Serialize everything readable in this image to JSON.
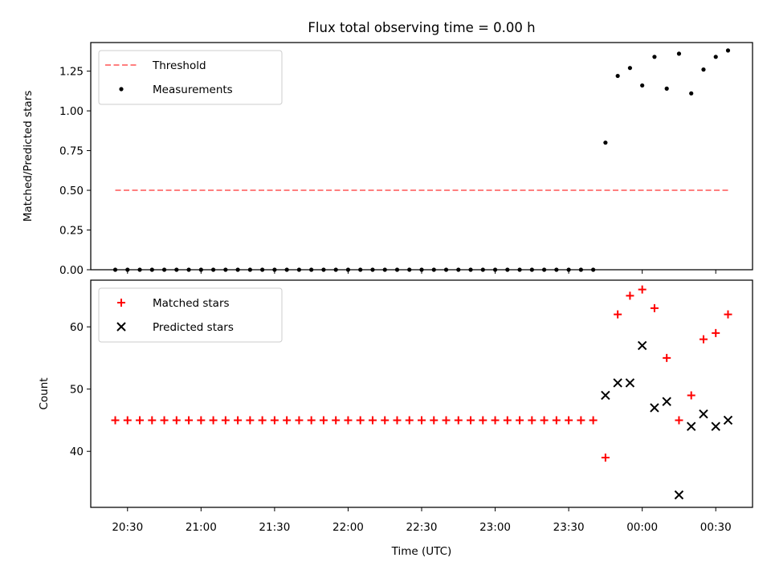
{
  "chart_data": {
    "title": "Flux total observing time = 0.00 h",
    "xlabel": "Time (UTC)",
    "shared_x": true,
    "x_ticks": [
      "20:30",
      "21:00",
      "21:30",
      "22:00",
      "22:30",
      "23:00",
      "23:30",
      "00:00",
      "00:30"
    ],
    "x_range": [
      "20:15",
      "00:45"
    ],
    "colors": {
      "threshold": "#ff7f7f",
      "measurements": "#000000",
      "matched": "#ff0000",
      "predicted": "#000000"
    },
    "panels": [
      {
        "type": "scatter",
        "ylabel": "Matched/Predicted stars",
        "ylim": [
          0,
          1.43
        ],
        "yticks": [
          0.0,
          0.25,
          0.5,
          0.75,
          1.0,
          1.25
        ],
        "ytick_labels": [
          "0.00",
          "0.25",
          "0.50",
          "0.75",
          "1.00",
          "1.25"
        ],
        "legend_position": "upper-left",
        "series": [
          {
            "name": "Threshold",
            "style": "dashed-line",
            "color": "#ff7f7f",
            "x": [
              "20:25",
              "00:35"
            ],
            "y": [
              0.5,
              0.5
            ]
          },
          {
            "name": "Measurements",
            "style": "dot",
            "color": "#000000",
            "x": [
              "20:25",
              "20:30",
              "20:35",
              "20:40",
              "20:45",
              "20:50",
              "20:55",
              "21:00",
              "21:05",
              "21:10",
              "21:15",
              "21:20",
              "21:25",
              "21:30",
              "21:35",
              "21:40",
              "21:45",
              "21:50",
              "21:55",
              "22:00",
              "22:05",
              "22:10",
              "22:15",
              "22:20",
              "22:25",
              "22:30",
              "22:35",
              "22:40",
              "22:45",
              "22:50",
              "22:55",
              "23:00",
              "23:05",
              "23:10",
              "23:15",
              "23:20",
              "23:25",
              "23:30",
              "23:35",
              "23:40",
              "23:45",
              "23:50",
              "23:55",
              "00:00",
              "00:05",
              "00:10",
              "00:15",
              "00:20",
              "00:25",
              "00:30",
              "00:35"
            ],
            "y": [
              0,
              0,
              0,
              0,
              0,
              0,
              0,
              0,
              0,
              0,
              0,
              0,
              0,
              0,
              0,
              0,
              0,
              0,
              0,
              0,
              0,
              0,
              0,
              0,
              0,
              0,
              0,
              0,
              0,
              0,
              0,
              0,
              0,
              0,
              0,
              0,
              0,
              0,
              0,
              0,
              0.8,
              1.22,
              1.27,
              1.16,
              1.34,
              1.14,
              1.36,
              1.11,
              1.26,
              1.34,
              1.38
            ]
          }
        ]
      },
      {
        "type": "scatter",
        "ylabel": "Count",
        "ylim": [
          31,
          67.5
        ],
        "yticks": [
          40,
          50,
          60
        ],
        "ytick_labels": [
          "40",
          "50",
          "60"
        ],
        "legend_position": "upper-left",
        "series": [
          {
            "name": "Matched stars",
            "style": "plus",
            "color": "#ff0000",
            "x": [
              "20:25",
              "20:30",
              "20:35",
              "20:40",
              "20:45",
              "20:50",
              "20:55",
              "21:00",
              "21:05",
              "21:10",
              "21:15",
              "21:20",
              "21:25",
              "21:30",
              "21:35",
              "21:40",
              "21:45",
              "21:50",
              "21:55",
              "22:00",
              "22:05",
              "22:10",
              "22:15",
              "22:20",
              "22:25",
              "22:30",
              "22:35",
              "22:40",
              "22:45",
              "22:50",
              "22:55",
              "23:00",
              "23:05",
              "23:10",
              "23:15",
              "23:20",
              "23:25",
              "23:30",
              "23:35",
              "23:40",
              "23:45",
              "23:50",
              "23:55",
              "00:00",
              "00:05",
              "00:10",
              "00:15",
              "00:20",
              "00:25",
              "00:30",
              "00:35"
            ],
            "y": [
              45,
              45,
              45,
              45,
              45,
              45,
              45,
              45,
              45,
              45,
              45,
              45,
              45,
              45,
              45,
              45,
              45,
              45,
              45,
              45,
              45,
              45,
              45,
              45,
              45,
              45,
              45,
              45,
              45,
              45,
              45,
              45,
              45,
              45,
              45,
              45,
              45,
              45,
              45,
              45,
              39,
              62,
              65,
              66,
              63,
              55,
              45,
              49,
              58,
              59,
              62
            ]
          },
          {
            "name": "Predicted stars",
            "style": "x",
            "color": "#000000",
            "x": [
              "23:45",
              "23:50",
              "23:55",
              "00:00",
              "00:05",
              "00:10",
              "00:15",
              "00:20",
              "00:25",
              "00:30",
              "00:35"
            ],
            "y": [
              49,
              51,
              51,
              57,
              47,
              48,
              33,
              44,
              46,
              44,
              45
            ]
          }
        ]
      }
    ]
  }
}
